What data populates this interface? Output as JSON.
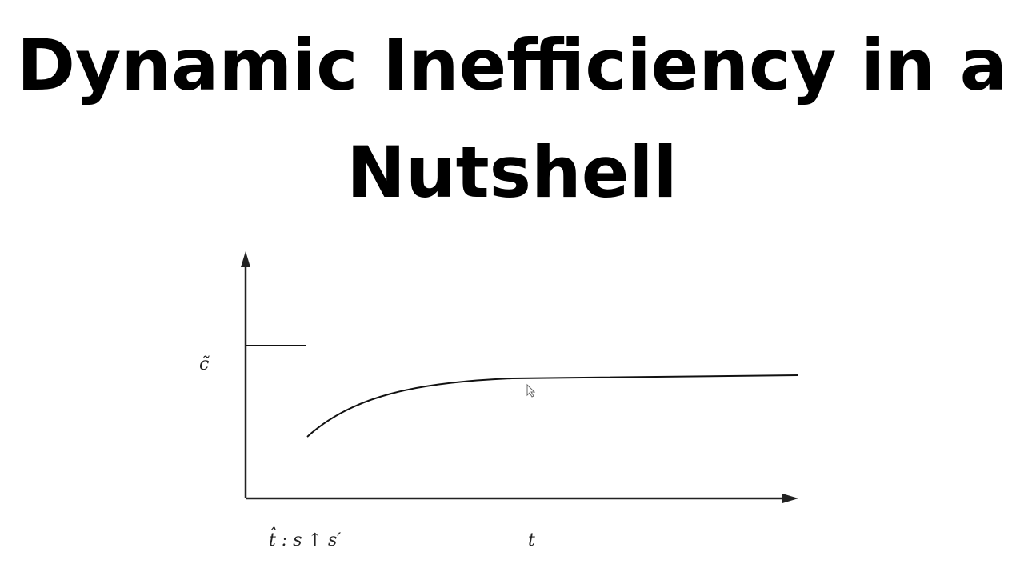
{
  "title": {
    "line1": "Dynamic Inefficiency in a",
    "line2": "Nutshell"
  },
  "diagram": {
    "y_label": "c̃",
    "x_label": "t",
    "event_label": "t̂ : s ↑ s′",
    "line_color": "#111111"
  }
}
